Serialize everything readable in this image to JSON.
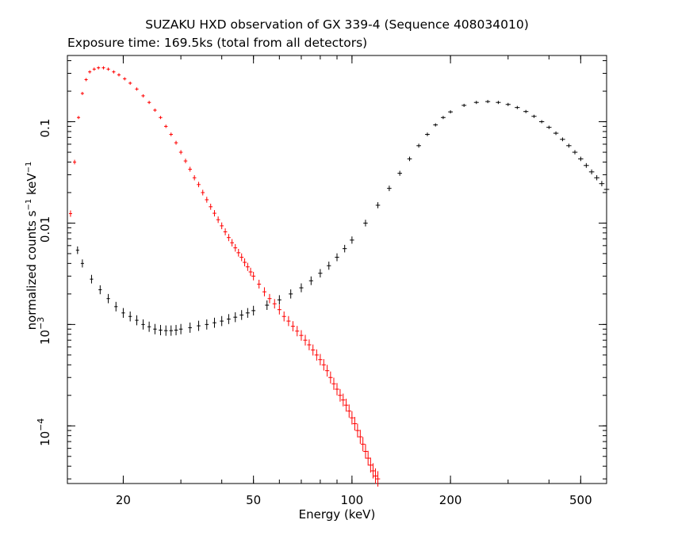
{
  "chart_data": {
    "type": "scatter",
    "title": "SUZAKU HXD observation of GX 339-4 (Sequence 408034010)",
    "subtitle": "Exposure time: 169.5ks (total from all detectors)",
    "xlabel": "Energy (keV)",
    "ylabel": {
      "main": "normalized counts s",
      "exp1": "−1",
      "mid": " keV",
      "exp2": "−1"
    },
    "x_scale": "log",
    "y_scale": "log",
    "xlim": [
      13.5,
      600
    ],
    "ylim": [
      2.7e-05,
      0.45
    ],
    "x_ticks": [
      {
        "value": 20,
        "label": "20"
      },
      {
        "value": 50,
        "label": "50"
      },
      {
        "value": 100,
        "label": "100"
      },
      {
        "value": 200,
        "label": "200"
      },
      {
        "value": 500,
        "label": "500"
      }
    ],
    "y_ticks": [
      {
        "value": 0.0001,
        "label": "10",
        "exp": "−4"
      },
      {
        "value": 0.001,
        "label": "10",
        "exp": "−3"
      },
      {
        "value": 0.01,
        "label": "0.01",
        "exp": ""
      },
      {
        "value": 0.1,
        "label": "0.1",
        "exp": ""
      }
    ],
    "grid": false,
    "series": [
      {
        "color": "#ff0000",
        "points": [
          [
            13.8,
            0.0124
          ],
          [
            14.2,
            0.04
          ],
          [
            14.6,
            0.11
          ],
          [
            15.0,
            0.19
          ],
          [
            15.4,
            0.26
          ],
          [
            15.8,
            0.31
          ],
          [
            16.3,
            0.33
          ],
          [
            16.8,
            0.34
          ],
          [
            17.4,
            0.34
          ],
          [
            18.0,
            0.33
          ],
          [
            18.7,
            0.31
          ],
          [
            19.4,
            0.29
          ],
          [
            20.2,
            0.265
          ],
          [
            21.0,
            0.24
          ],
          [
            22.0,
            0.21
          ],
          [
            23.0,
            0.18
          ],
          [
            24.0,
            0.155
          ],
          [
            25.0,
            0.13
          ],
          [
            26.0,
            0.11
          ],
          [
            27.0,
            0.09
          ],
          [
            28.0,
            0.075
          ],
          [
            29.0,
            0.062
          ],
          [
            30.0,
            0.05
          ],
          [
            31.0,
            0.041
          ],
          [
            32.0,
            0.034
          ],
          [
            33.0,
            0.028
          ],
          [
            34.0,
            0.024
          ],
          [
            35.0,
            0.02
          ],
          [
            36.0,
            0.017
          ],
          [
            37.0,
            0.0145
          ],
          [
            38.0,
            0.0125
          ],
          [
            39.0,
            0.0108
          ],
          [
            40.0,
            0.0094
          ],
          [
            41.0,
            0.0082
          ],
          [
            42.0,
            0.0072
          ],
          [
            43.0,
            0.0064
          ],
          [
            44.0,
            0.0057
          ],
          [
            45.0,
            0.0051
          ],
          [
            46.0,
            0.0046
          ],
          [
            47.0,
            0.0041
          ],
          [
            48.0,
            0.0037
          ],
          [
            49.0,
            0.0033
          ],
          [
            50.0,
            0.003
          ],
          [
            52.0,
            0.0025
          ],
          [
            54.0,
            0.0021
          ],
          [
            56.0,
            0.0018
          ],
          [
            58.0,
            0.0016
          ],
          [
            60.0,
            0.0014
          ],
          [
            62.0,
            0.0012
          ],
          [
            64.0,
            0.00108
          ],
          [
            66.0,
            0.00096
          ],
          [
            68.0,
            0.00086
          ],
          [
            70.0,
            0.00078
          ],
          [
            72.0,
            0.0007
          ],
          [
            74.0,
            0.00063
          ],
          [
            76.0,
            0.00056
          ],
          [
            78.0,
            0.0005
          ],
          [
            80.0,
            0.00045
          ],
          [
            82.0,
            0.0004
          ],
          [
            84.0,
            0.00035
          ],
          [
            86.0,
            0.0003
          ],
          [
            88.0,
            0.00026
          ],
          [
            90.0,
            0.00023
          ],
          [
            92.0,
            0.0002
          ],
          [
            94.0,
            0.00018
          ],
          [
            96.0,
            0.00016
          ],
          [
            98.0,
            0.00014
          ],
          [
            100.0,
            0.00012
          ],
          [
            102.0,
            0.000105
          ],
          [
            104.0,
            9e-05
          ],
          [
            106.0,
            7.8e-05
          ],
          [
            108.0,
            6.6e-05
          ],
          [
            110.0,
            5.6e-05
          ],
          [
            112.0,
            4.8e-05
          ],
          [
            114.0,
            4.1e-05
          ],
          [
            116.0,
            3.6e-05
          ],
          [
            118.0,
            3.2e-05
          ],
          [
            120.0,
            3e-05
          ]
        ]
      },
      {
        "color": "#000000",
        "points": [
          [
            14.5,
            0.0054
          ],
          [
            15.0,
            0.004
          ],
          [
            16.0,
            0.0028
          ],
          [
            17.0,
            0.0022
          ],
          [
            18.0,
            0.0018
          ],
          [
            19.0,
            0.0015
          ],
          [
            20.0,
            0.0013
          ],
          [
            21.0,
            0.0012
          ],
          [
            22.0,
            0.0011
          ],
          [
            23.0,
            0.001
          ],
          [
            24.0,
            0.00095
          ],
          [
            25.0,
            0.0009
          ],
          [
            26.0,
            0.00088
          ],
          [
            27.0,
            0.00087
          ],
          [
            28.0,
            0.00087
          ],
          [
            29.0,
            0.00088
          ],
          [
            30.0,
            0.0009
          ],
          [
            32.0,
            0.00093
          ],
          [
            34.0,
            0.00097
          ],
          [
            36.0,
            0.001
          ],
          [
            38.0,
            0.00104
          ],
          [
            40.0,
            0.00108
          ],
          [
            42.0,
            0.00113
          ],
          [
            44.0,
            0.00118
          ],
          [
            46.0,
            0.00124
          ],
          [
            48.0,
            0.0013
          ],
          [
            50.0,
            0.00137
          ],
          [
            55.0,
            0.00155
          ],
          [
            60.0,
            0.00175
          ],
          [
            65.0,
            0.002
          ],
          [
            70.0,
            0.0023
          ],
          [
            75.0,
            0.0027
          ],
          [
            80.0,
            0.0032
          ],
          [
            85.0,
            0.0038
          ],
          [
            90.0,
            0.0046
          ],
          [
            95.0,
            0.0056
          ],
          [
            100.0,
            0.0068
          ],
          [
            110.0,
            0.01
          ],
          [
            120.0,
            0.015
          ],
          [
            130.0,
            0.022
          ],
          [
            140.0,
            0.031
          ],
          [
            150.0,
            0.043
          ],
          [
            160.0,
            0.058
          ],
          [
            170.0,
            0.075
          ],
          [
            180.0,
            0.093
          ],
          [
            190.0,
            0.11
          ],
          [
            200.0,
            0.125
          ],
          [
            220.0,
            0.145
          ],
          [
            240.0,
            0.155
          ],
          [
            260.0,
            0.158
          ],
          [
            280.0,
            0.155
          ],
          [
            300.0,
            0.148
          ],
          [
            320.0,
            0.138
          ],
          [
            340.0,
            0.126
          ],
          [
            360.0,
            0.113
          ],
          [
            380.0,
            0.1
          ],
          [
            400.0,
            0.088
          ],
          [
            420.0,
            0.077
          ],
          [
            440.0,
            0.067
          ],
          [
            460.0,
            0.058
          ],
          [
            480.0,
            0.05
          ],
          [
            500.0,
            0.043
          ],
          [
            520.0,
            0.037
          ],
          [
            540.0,
            0.032
          ],
          [
            560.0,
            0.028
          ],
          [
            580.0,
            0.0245
          ],
          [
            600.0,
            0.0215
          ]
        ]
      }
    ]
  }
}
